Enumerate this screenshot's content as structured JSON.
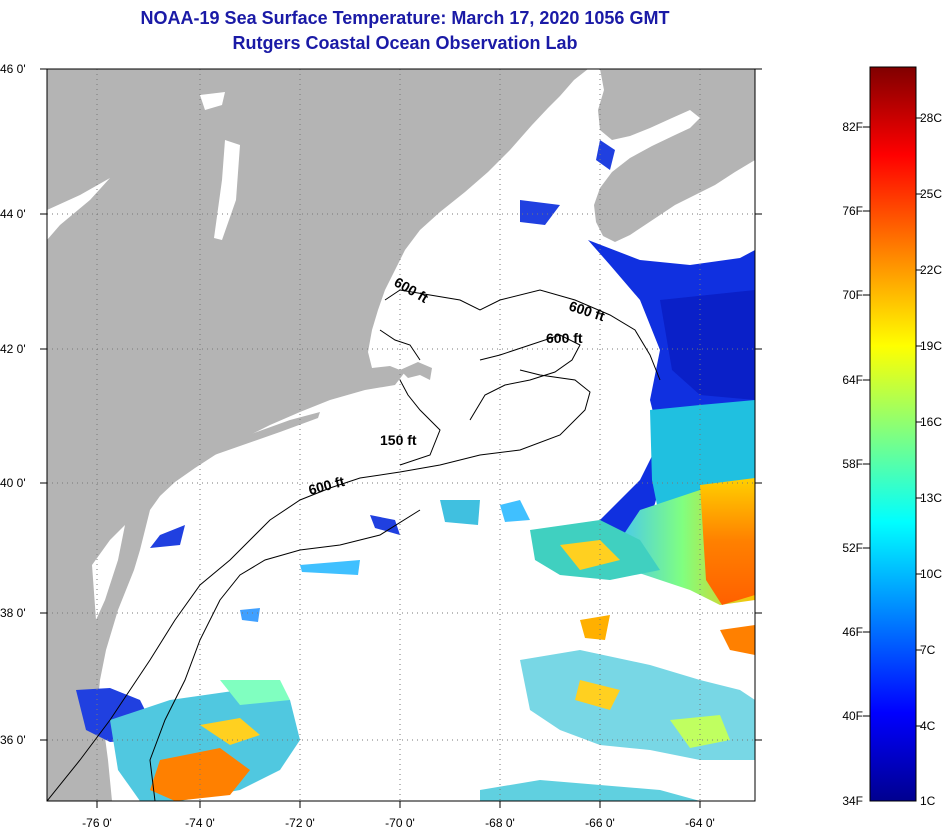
{
  "header": {
    "title": "NOAA-19 Sea Surface Temperature:  March 17, 2020 1056 GMT",
    "subtitle": "Rutgers Coastal Ocean Observation Lab"
  },
  "map": {
    "lat_labels": [
      "46 0'",
      "44 0'",
      "42 0'",
      "40 0'",
      "38 0'",
      "36 0'"
    ],
    "lon_labels": [
      "-76 0'",
      "-74 0'",
      "-72 0'",
      "-70 0'",
      "-68 0'",
      "-66 0'",
      "-64 0'"
    ],
    "isobath_labels": [
      "600 ft",
      "600 ft",
      "600 ft",
      "150 ft",
      "600 ft"
    ],
    "land_color": "#b4b4b4",
    "ocean_color": "#ffffff"
  },
  "colorbar": {
    "f_labels": [
      "82F",
      "76F",
      "70F",
      "64F",
      "58F",
      "52F",
      "46F",
      "40F",
      "34F"
    ],
    "c_labels": [
      "28C",
      "25C",
      "22C",
      "19C",
      "16C",
      "13C",
      "10C",
      "7C",
      "4C",
      "1C"
    ],
    "colors": [
      "#00008f",
      "#0000ff",
      "#0080ff",
      "#00ffff",
      "#80ff80",
      "#ffff00",
      "#ff8000",
      "#ff0000",
      "#800000"
    ]
  }
}
